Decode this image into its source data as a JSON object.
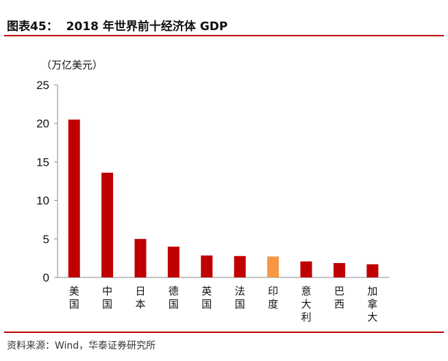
{
  "header": {
    "figure_label": "图表45：",
    "title": "2018 年世界前十经济体 GDP"
  },
  "unit_label": "（万亿美元）",
  "source": "资料来源：Wind，华泰证券研究所",
  "chart_data": {
    "type": "bar",
    "categories": [
      "美国",
      "中国",
      "日本",
      "德国",
      "英国",
      "法国",
      "印度",
      "意大利",
      "巴西",
      "加拿大"
    ],
    "values": [
      20.5,
      13.6,
      5.0,
      4.0,
      2.85,
      2.78,
      2.72,
      2.08,
      1.87,
      1.71
    ],
    "colors": [
      "#c00000",
      "#c00000",
      "#c00000",
      "#c00000",
      "#c00000",
      "#c00000",
      "#f79646",
      "#c00000",
      "#c00000",
      "#c00000"
    ],
    "ylim": [
      0,
      25
    ],
    "yticks": [
      0,
      5,
      10,
      15,
      20,
      25
    ],
    "grid": false
  }
}
